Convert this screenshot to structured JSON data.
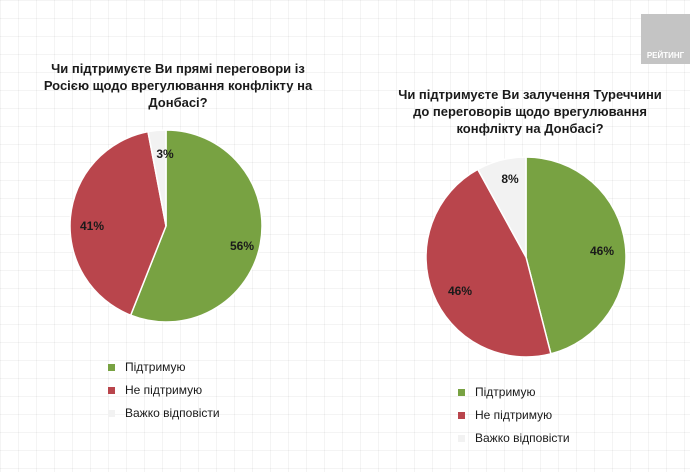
{
  "brand": {
    "logo_text": "РЕЙТИНГ"
  },
  "chart_data": [
    {
      "type": "pie",
      "title": "Чи підтримуєте Ви прямі переговори із\nРосією щодо врегулювання конфлікту на\nДонбасі?",
      "categories": [
        "Підтримую",
        "Не підтримую",
        "Важко відповісти"
      ],
      "values": [
        56,
        41,
        3
      ],
      "labels": [
        "56%",
        "41%",
        "3%"
      ],
      "colors": [
        "#78a242",
        "#b9454c",
        "#f2f2f2"
      ],
      "legend": "bottom-left"
    },
    {
      "type": "pie",
      "title": "Чи підтримуєте Ви залучення Туреччини\nдо переговорів щодо врегулювання\nконфлікту на Донбасі?",
      "categories": [
        "Підтримую",
        "Не підтримую",
        "Важко відповісти"
      ],
      "values": [
        46,
        46,
        8
      ],
      "labels": [
        "46%",
        "46%",
        "8%"
      ],
      "colors": [
        "#78a242",
        "#b9454c",
        "#f2f2f2"
      ],
      "legend": "bottom-left"
    }
  ]
}
